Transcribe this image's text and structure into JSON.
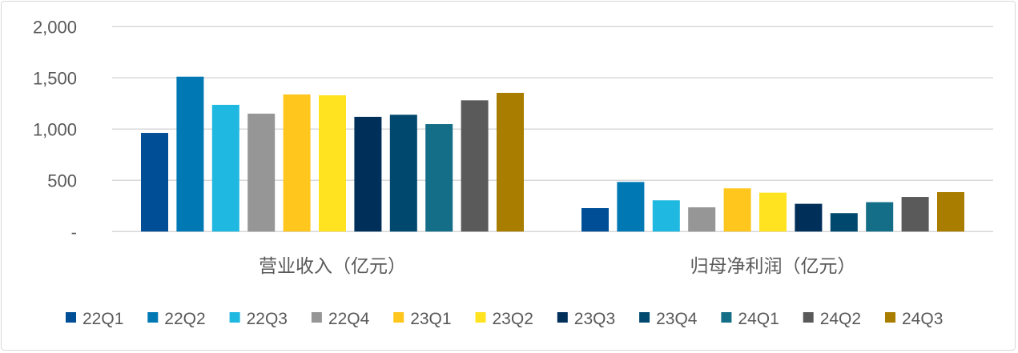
{
  "chart_data": {
    "type": "bar",
    "categories": [
      "营业收入（亿元）",
      "归母净利润（亿元）"
    ],
    "ylim": [
      0,
      2000
    ],
    "yticks": [
      0,
      500,
      1000,
      1500,
      2000
    ],
    "ytick_labels": [
      "-",
      "500",
      "1,000",
      "1,500",
      "2,000"
    ],
    "grid": true,
    "legend_position": "bottom",
    "series": [
      {
        "name": "22Q1",
        "color": "#004f96",
        "values": [
          963,
          229
        ]
      },
      {
        "name": "22Q2",
        "color": "#0078b4",
        "values": [
          1512,
          484
        ]
      },
      {
        "name": "22Q3",
        "color": "#1fb8e0",
        "values": [
          1237,
          305
        ]
      },
      {
        "name": "22Q4",
        "color": "#969696",
        "values": [
          1151,
          237
        ]
      },
      {
        "name": "23Q1",
        "color": "#ffc61e",
        "values": [
          1338,
          422
        ]
      },
      {
        "name": "23Q2",
        "color": "#ffe320",
        "values": [
          1330,
          380
        ]
      },
      {
        "name": "23Q3",
        "color": "#002f5a",
        "values": [
          1120,
          271
        ]
      },
      {
        "name": "23Q4",
        "color": "#00486e",
        "values": [
          1140,
          180
        ]
      },
      {
        "name": "24Q1",
        "color": "#146e87",
        "values": [
          1049,
          287
        ]
      },
      {
        "name": "24Q2",
        "color": "#5a5a5a",
        "values": [
          1281,
          338
        ]
      },
      {
        "name": "24Q3",
        "color": "#a87d00",
        "values": [
          1354,
          385
        ]
      }
    ]
  }
}
